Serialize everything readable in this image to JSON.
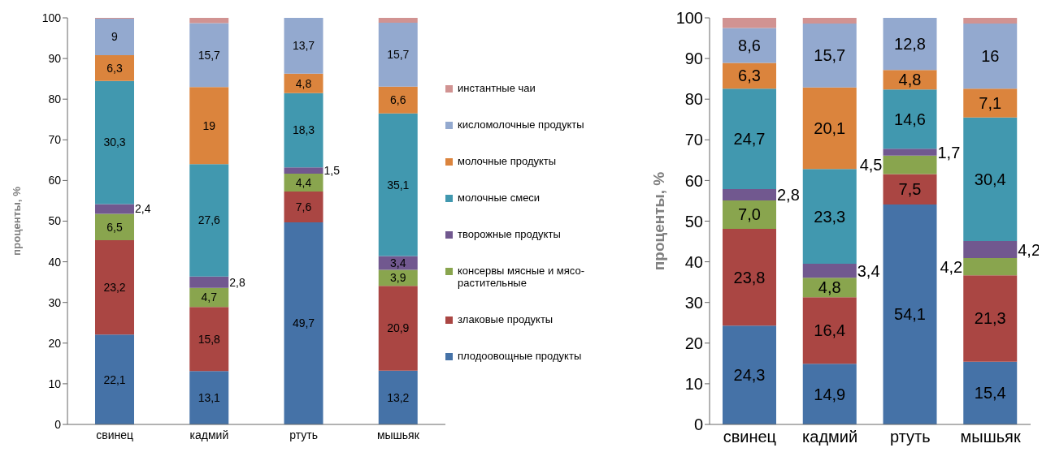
{
  "chart_data": [
    {
      "type": "bar",
      "stacked": true,
      "categories": [
        "свинец",
        "кадмий",
        "ртуть",
        "мышьяк"
      ],
      "ylabel": "проценты, %",
      "ylim": [
        0,
        100
      ],
      "yticks": [
        0,
        10,
        20,
        30,
        40,
        50,
        60,
        70,
        80,
        90,
        100
      ],
      "grid": false,
      "legend": "right",
      "series": [
        {
          "name": "плодоовощные продукты",
          "color": "#4572a7",
          "values": [
            22.1,
            13.1,
            49.7,
            13.2
          ],
          "value_labels": [
            "22,1",
            "13,1",
            "49,7",
            "13,2"
          ]
        },
        {
          "name": "злаковые продукты",
          "color": "#aa4643",
          "values": [
            23.2,
            15.8,
            7.6,
            20.9
          ],
          "value_labels": [
            "23,2",
            "15,8",
            "7,6",
            "20,9"
          ]
        },
        {
          "name": "консервы мясные и мясо-растительные",
          "color": "#89a54e",
          "values": [
            6.5,
            4.7,
            4.4,
            3.9
          ],
          "value_labels": [
            "6,5",
            "4,7",
            "4,4",
            "3,9"
          ]
        },
        {
          "name": "творожные продукты",
          "color": "#71588f",
          "values": [
            2.4,
            2.8,
            1.5,
            3.4
          ],
          "value_labels": [
            "2,4",
            "2,8",
            "1,5",
            "3,4"
          ]
        },
        {
          "name": "молочные смеси",
          "color": "#4198af",
          "values": [
            30.3,
            27.6,
            18.3,
            35.1
          ],
          "value_labels": [
            "30,3",
            "27,6",
            "18,3",
            "35,1"
          ]
        },
        {
          "name": "молочные продукты",
          "color": "#db843d",
          "values": [
            6.3,
            19,
            4.8,
            6.6
          ],
          "value_labels": [
            "6,3",
            "19",
            "4,8",
            "6,6"
          ]
        },
        {
          "name": "кисломолочные продукты",
          "color": "#93a9cf",
          "values": [
            9,
            15.7,
            13.7,
            15.7
          ],
          "value_labels": [
            "9",
            "15,7",
            "13,7",
            "15,7"
          ]
        },
        {
          "name": "инстантные чаи",
          "color": "#d19392",
          "values": [
            0.2,
            1.3,
            0,
            1.2
          ],
          "value_labels": [
            null,
            null,
            null,
            null
          ]
        }
      ]
    },
    {
      "type": "bar",
      "stacked": true,
      "categories": [
        "свинец",
        "кадмий",
        "ртуть",
        "мышьяк"
      ],
      "ylabel": "проценты, %",
      "ylim": [
        0,
        100
      ],
      "yticks": [
        0,
        10,
        20,
        30,
        40,
        50,
        60,
        70,
        80,
        90,
        100
      ],
      "grid": false,
      "legend": false,
      "series": [
        {
          "color": "#4572a7",
          "values": [
            24.3,
            14.9,
            54.1,
            15.4
          ],
          "value_labels": [
            "24,3",
            "14,9",
            "54,1",
            "15,4"
          ]
        },
        {
          "color": "#aa4643",
          "values": [
            23.8,
            16.4,
            7.5,
            21.3
          ],
          "value_labels": [
            "23,8",
            "16,4",
            "7,5",
            "21,3"
          ]
        },
        {
          "color": "#89a54e",
          "values": [
            7.0,
            4.8,
            4.5,
            4.2
          ],
          "value_labels": [
            "7,0",
            "4,8",
            "4,5",
            "4,2"
          ]
        },
        {
          "color": "#71588f",
          "values": [
            2.8,
            3.4,
            1.7,
            4.2
          ],
          "value_labels": [
            "2,8",
            "3,4",
            "1,7",
            "4,2"
          ]
        },
        {
          "color": "#4198af",
          "values": [
            24.7,
            23.3,
            14.6,
            30.4
          ],
          "value_labels": [
            "24,7",
            "23,3",
            "14,6",
            "30,4"
          ]
        },
        {
          "color": "#db843d",
          "values": [
            6.3,
            20.1,
            4.8,
            7.1
          ],
          "value_labels": [
            "6,3",
            "20,1",
            "4,8",
            "7,1"
          ]
        },
        {
          "color": "#93a9cf",
          "values": [
            8.6,
            15.7,
            12.8,
            16
          ],
          "value_labels": [
            "8,6",
            "15,7",
            "12,8",
            "16"
          ]
        },
        {
          "color": "#d19392",
          "values": [
            2.5,
            1.4,
            0,
            1.4
          ],
          "value_labels": [
            null,
            null,
            null,
            null
          ]
        }
      ]
    }
  ]
}
